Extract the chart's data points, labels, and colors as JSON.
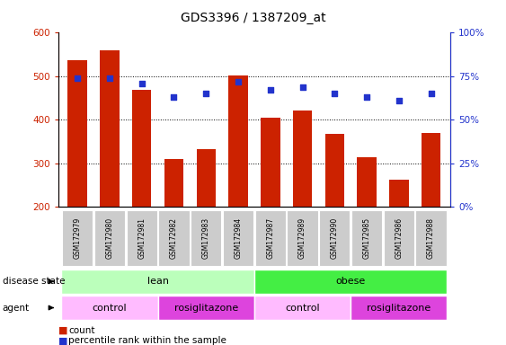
{
  "title": "GDS3396 / 1387209_at",
  "samples": [
    "GSM172979",
    "GSM172980",
    "GSM172981",
    "GSM172982",
    "GSM172983",
    "GSM172984",
    "GSM172987",
    "GSM172989",
    "GSM172990",
    "GSM172985",
    "GSM172986",
    "GSM172988"
  ],
  "bar_values": [
    537,
    560,
    470,
    310,
    333,
    503,
    405,
    422,
    368,
    315,
    262,
    370
  ],
  "percentile_values": [
    74,
    74,
    71,
    63,
    65,
    72,
    67,
    69,
    65,
    63,
    61,
    65
  ],
  "bar_color": "#cc2200",
  "dot_color": "#2233cc",
  "ylim_left": [
    200,
    600
  ],
  "ylim_right": [
    0,
    100
  ],
  "yticks_left": [
    200,
    300,
    400,
    500,
    600
  ],
  "yticks_right": [
    0,
    25,
    50,
    75,
    100
  ],
  "ytick_labels_right": [
    "0%",
    "25%",
    "50%",
    "75%",
    "100%"
  ],
  "grid_values": [
    300,
    400,
    500
  ],
  "disease_state_groups": [
    {
      "label": "lean",
      "start": 0,
      "end": 6,
      "color": "#bbffbb"
    },
    {
      "label": "obese",
      "start": 6,
      "end": 12,
      "color": "#44ee44"
    }
  ],
  "agent_groups": [
    {
      "label": "control",
      "start": 0,
      "end": 3,
      "color": "#ffbbff"
    },
    {
      "label": "rosiglitazone",
      "start": 3,
      "end": 6,
      "color": "#dd44dd"
    },
    {
      "label": "control",
      "start": 6,
      "end": 9,
      "color": "#ffbbff"
    },
    {
      "label": "rosiglitazone",
      "start": 9,
      "end": 12,
      "color": "#dd44dd"
    }
  ],
  "disease_state_label": "disease state",
  "agent_label": "agent",
  "legend_count_label": "count",
  "legend_percentile_label": "percentile rank within the sample",
  "background_color": "#ffffff",
  "tick_bg_color": "#cccccc"
}
